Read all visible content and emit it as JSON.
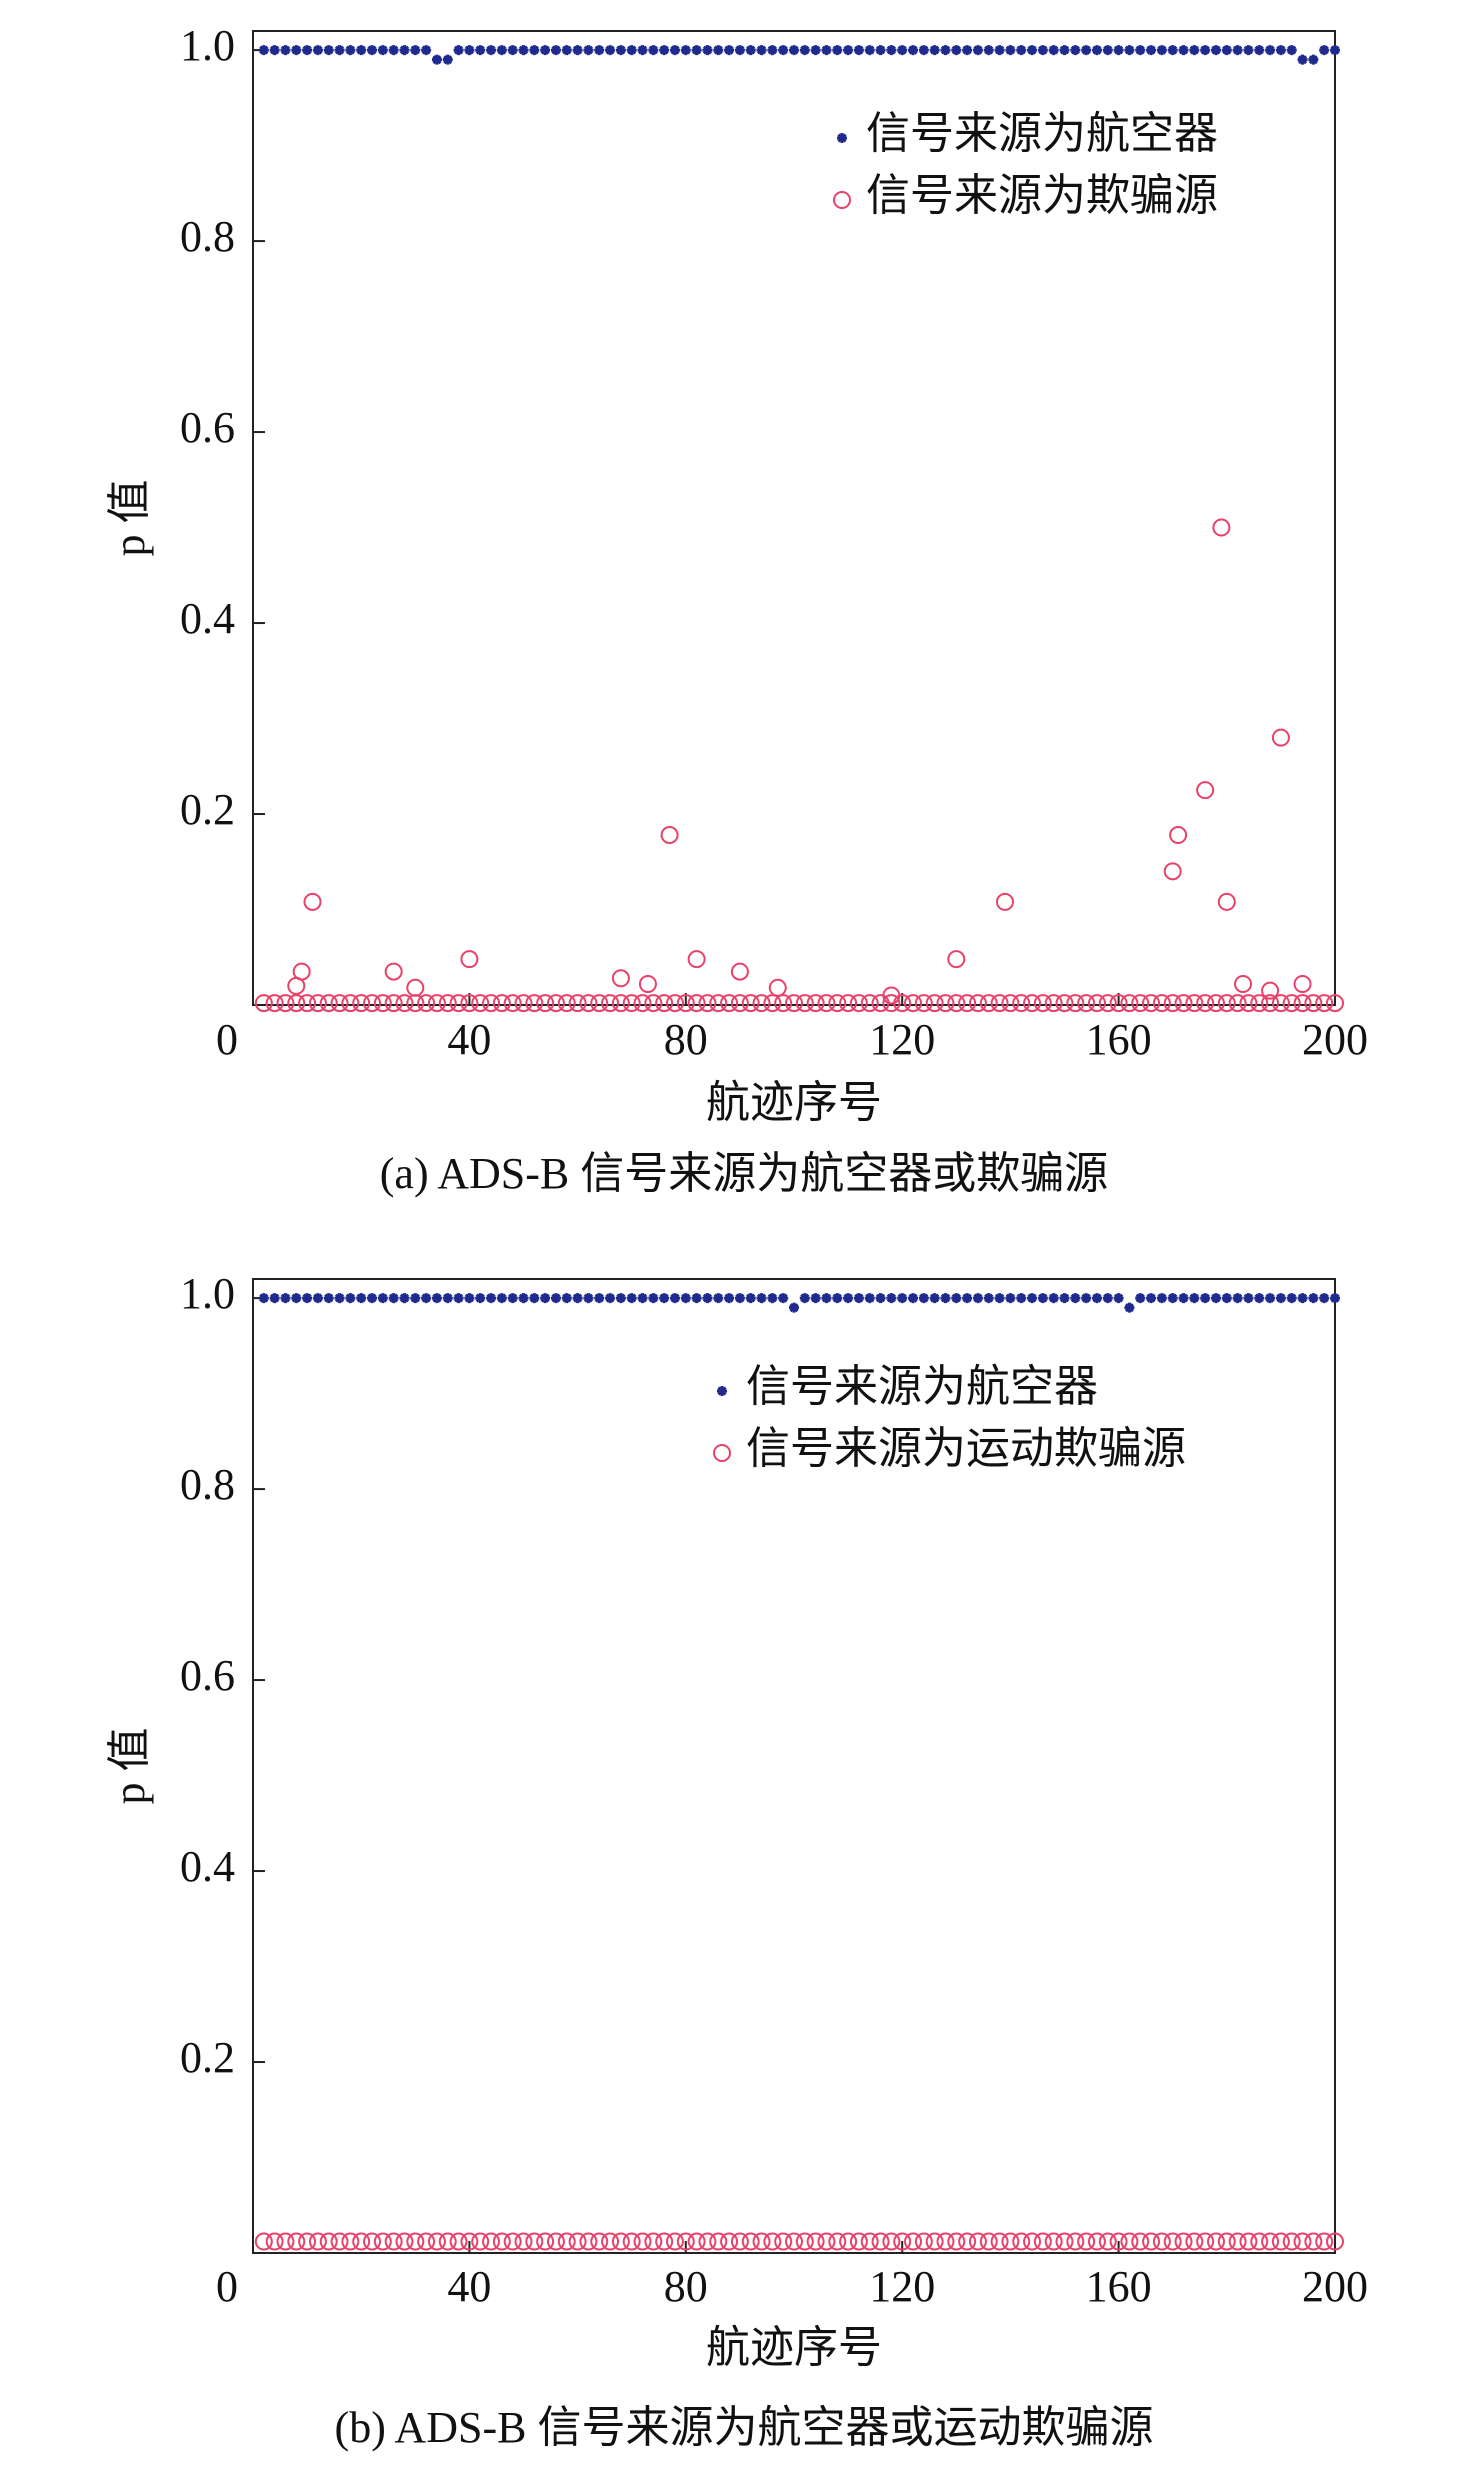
{
  "chart_data": [
    {
      "type": "scatter",
      "xlabel": "航迹序号",
      "ylabel": "p 值",
      "caption": "(a) ADS-B 信号来源为航空器或欺骗源",
      "xlim": [
        0,
        200
      ],
      "ylim": [
        0,
        1.02
      ],
      "xticks": [
        0,
        40,
        80,
        120,
        160,
        200
      ],
      "yticks": [
        0.2,
        0.4,
        0.6,
        0.8,
        {
          "value": 1,
          "label": "1.0"
        }
      ],
      "legend": "upper right",
      "series": [
        {
          "name": "信号来源为航空器",
          "color": "#1f2a8c",
          "marker": "star",
          "x": [
            2,
            4,
            6,
            8,
            10,
            12,
            14,
            16,
            18,
            20,
            22,
            24,
            26,
            28,
            30,
            32,
            34,
            36,
            38,
            40,
            42,
            44,
            46,
            48,
            50,
            52,
            54,
            56,
            58,
            60,
            62,
            64,
            66,
            68,
            70,
            72,
            74,
            76,
            78,
            80,
            82,
            84,
            86,
            88,
            90,
            92,
            94,
            96,
            98,
            100,
            102,
            104,
            106,
            108,
            110,
            112,
            114,
            116,
            118,
            120,
            122,
            124,
            126,
            128,
            130,
            132,
            134,
            136,
            138,
            140,
            142,
            144,
            146,
            148,
            150,
            152,
            154,
            156,
            158,
            160,
            162,
            164,
            166,
            168,
            170,
            172,
            174,
            176,
            178,
            180,
            182,
            184,
            186,
            188,
            190,
            192,
            194,
            196,
            198,
            200
          ],
          "values": [
            1,
            1,
            1,
            1,
            1,
            1,
            1,
            1,
            1,
            1,
            1,
            1,
            1,
            1,
            1,
            1,
            0.99,
            0.99,
            1,
            1,
            1,
            1,
            1,
            1,
            1,
            1,
            1,
            1,
            1,
            1,
            1,
            1,
            1,
            1,
            1,
            1,
            1,
            1,
            1,
            1,
            1,
            1,
            1,
            1,
            1,
            1,
            1,
            1,
            1,
            1,
            1,
            1,
            1,
            1,
            1,
            1,
            1,
            1,
            1,
            1,
            1,
            1,
            1,
            1,
            1,
            1,
            1,
            1,
            1,
            1,
            1,
            1,
            1,
            1,
            1,
            1,
            1,
            1,
            1,
            1,
            1,
            1,
            1,
            1,
            1,
            1,
            1,
            1,
            1,
            1,
            1,
            1,
            1,
            1,
            1,
            1,
            0.99,
            0.99,
            1,
            1
          ]
        },
        {
          "name": "信号来源为欺骗源",
          "color": "#e8426a",
          "marker": "circle",
          "x": [
            2,
            4,
            6,
            8,
            10,
            12,
            14,
            16,
            18,
            20,
            22,
            24,
            26,
            28,
            30,
            32,
            34,
            36,
            38,
            40,
            42,
            44,
            46,
            48,
            50,
            52,
            54,
            56,
            58,
            60,
            62,
            64,
            66,
            68,
            70,
            72,
            74,
            76,
            78,
            80,
            82,
            84,
            86,
            88,
            90,
            92,
            94,
            96,
            98,
            100,
            102,
            104,
            106,
            108,
            110,
            112,
            114,
            116,
            118,
            120,
            122,
            124,
            126,
            128,
            130,
            132,
            134,
            136,
            138,
            140,
            142,
            144,
            146,
            148,
            150,
            152,
            154,
            156,
            158,
            160,
            162,
            164,
            166,
            168,
            170,
            172,
            174,
            176,
            178,
            180,
            182,
            184,
            186,
            188,
            190,
            192,
            194,
            196,
            198,
            200,
            8,
            9,
            11,
            26,
            30,
            40,
            68,
            73,
            77,
            82,
            90,
            97,
            118,
            130,
            139,
            170,
            171,
            176,
            179,
            180,
            183,
            188,
            190,
            194
          ],
          "values": [
            0.002,
            0.002,
            0.002,
            0.002,
            0.002,
            0.002,
            0.002,
            0.002,
            0.002,
            0.002,
            0.002,
            0.002,
            0.002,
            0.002,
            0.002,
            0.002,
            0.002,
            0.002,
            0.002,
            0.002,
            0.002,
            0.002,
            0.002,
            0.002,
            0.002,
            0.002,
            0.002,
            0.002,
            0.002,
            0.002,
            0.002,
            0.002,
            0.002,
            0.002,
            0.002,
            0.002,
            0.002,
            0.002,
            0.002,
            0.002,
            0.002,
            0.002,
            0.002,
            0.002,
            0.002,
            0.002,
            0.002,
            0.002,
            0.002,
            0.002,
            0.002,
            0.002,
            0.002,
            0.002,
            0.002,
            0.002,
            0.002,
            0.002,
            0.002,
            0.002,
            0.002,
            0.002,
            0.002,
            0.002,
            0.002,
            0.002,
            0.002,
            0.002,
            0.002,
            0.002,
            0.002,
            0.002,
            0.002,
            0.002,
            0.002,
            0.002,
            0.002,
            0.002,
            0.002,
            0.002,
            0.002,
            0.002,
            0.002,
            0.002,
            0.002,
            0.002,
            0.002,
            0.002,
            0.002,
            0.002,
            0.002,
            0.002,
            0.002,
            0.002,
            0.002,
            0.002,
            0.002,
            0.002,
            0.002,
            0.002,
            0.02,
            0.035,
            0.108,
            0.035,
            0.018,
            0.048,
            0.028,
            0.022,
            0.178,
            0.048,
            0.035,
            0.018,
            0.01,
            0.048,
            0.108,
            0.14,
            0.178,
            0.225,
            0.5,
            0.108,
            0.022,
            0.015,
            0.28,
            0.022
          ]
        }
      ]
    },
    {
      "type": "scatter",
      "xlabel": "航迹序号",
      "ylabel": "p 值",
      "caption": "(b) ADS-B 信号来源为航空器或运动欺骗源",
      "xlim": [
        0,
        200
      ],
      "ylim": [
        0,
        1.02
      ],
      "xticks": [
        0,
        40,
        80,
        120,
        160,
        200
      ],
      "yticks": [
        0.2,
        0.4,
        0.6,
        0.8,
        {
          "value": 1,
          "label": "1.0"
        }
      ],
      "legend": "upper right",
      "series": [
        {
          "name": "信号来源为航空器",
          "color": "#1f2a8c",
          "marker": "star",
          "x": [
            2,
            4,
            6,
            8,
            10,
            12,
            14,
            16,
            18,
            20,
            22,
            24,
            26,
            28,
            30,
            32,
            34,
            36,
            38,
            40,
            42,
            44,
            46,
            48,
            50,
            52,
            54,
            56,
            58,
            60,
            62,
            64,
            66,
            68,
            70,
            72,
            74,
            76,
            78,
            80,
            82,
            84,
            86,
            88,
            90,
            92,
            94,
            96,
            98,
            100,
            102,
            104,
            106,
            108,
            110,
            112,
            114,
            116,
            118,
            120,
            122,
            124,
            126,
            128,
            130,
            132,
            134,
            136,
            138,
            140,
            142,
            144,
            146,
            148,
            150,
            152,
            154,
            156,
            158,
            160,
            162,
            164,
            166,
            168,
            170,
            172,
            174,
            176,
            178,
            180,
            182,
            184,
            186,
            188,
            190,
            192,
            194,
            196,
            198,
            200
          ],
          "values": [
            1,
            1,
            1,
            1,
            1,
            1,
            1,
            1,
            1,
            1,
            1,
            1,
            1,
            1,
            1,
            1,
            1,
            1,
            1,
            1,
            1,
            1,
            1,
            1,
            1,
            1,
            1,
            1,
            1,
            1,
            1,
            1,
            1,
            1,
            1,
            1,
            1,
            1,
            1,
            1,
            1,
            1,
            1,
            1,
            1,
            1,
            1,
            1,
            1,
            0.99,
            1,
            1,
            1,
            1,
            1,
            1,
            1,
            1,
            1,
            1,
            1,
            1,
            1,
            1,
            1,
            1,
            1,
            1,
            1,
            1,
            1,
            1,
            1,
            1,
            1,
            1,
            1,
            1,
            1,
            1,
            0.99,
            1,
            1,
            1,
            1,
            1,
            1,
            1,
            1,
            1,
            1,
            1,
            1,
            1,
            1,
            1,
            1,
            1,
            1,
            1
          ]
        },
        {
          "name": "信号来源为运动欺骗源",
          "color": "#e8426a",
          "marker": "circle",
          "x": [
            2,
            4,
            6,
            8,
            10,
            12,
            14,
            16,
            18,
            20,
            22,
            24,
            26,
            28,
            30,
            32,
            34,
            36,
            38,
            40,
            42,
            44,
            46,
            48,
            50,
            52,
            54,
            56,
            58,
            60,
            62,
            64,
            66,
            68,
            70,
            72,
            74,
            76,
            78,
            80,
            82,
            84,
            86,
            88,
            90,
            92,
            94,
            96,
            98,
            100,
            102,
            104,
            106,
            108,
            110,
            112,
            114,
            116,
            118,
            120,
            122,
            124,
            126,
            128,
            130,
            132,
            134,
            136,
            138,
            140,
            142,
            144,
            146,
            148,
            150,
            152,
            154,
            156,
            158,
            160,
            162,
            164,
            166,
            168,
            170,
            172,
            174,
            176,
            178,
            180,
            182,
            184,
            186,
            188,
            190,
            192,
            194,
            196,
            198,
            200
          ],
          "values": [
            0.012,
            0.012,
            0.012,
            0.012,
            0.012,
            0.012,
            0.012,
            0.012,
            0.012,
            0.012,
            0.012,
            0.012,
            0.012,
            0.012,
            0.012,
            0.012,
            0.012,
            0.012,
            0.012,
            0.012,
            0.012,
            0.012,
            0.012,
            0.012,
            0.012,
            0.012,
            0.012,
            0.012,
            0.012,
            0.012,
            0.012,
            0.012,
            0.012,
            0.012,
            0.012,
            0.012,
            0.012,
            0.012,
            0.012,
            0.012,
            0.012,
            0.012,
            0.012,
            0.012,
            0.012,
            0.012,
            0.012,
            0.012,
            0.012,
            0.012,
            0.012,
            0.012,
            0.012,
            0.012,
            0.012,
            0.012,
            0.012,
            0.012,
            0.012,
            0.012,
            0.012,
            0.012,
            0.012,
            0.012,
            0.012,
            0.012,
            0.012,
            0.012,
            0.012,
            0.012,
            0.012,
            0.012,
            0.012,
            0.012,
            0.012,
            0.012,
            0.012,
            0.012,
            0.012,
            0.012,
            0.012,
            0.012,
            0.012,
            0.012,
            0.012,
            0.012,
            0.012,
            0.012,
            0.012,
            0.012,
            0.012,
            0.012,
            0.012,
            0.012,
            0.012,
            0.012,
            0.012,
            0.012,
            0.012,
            0.012
          ]
        }
      ]
    }
  ]
}
